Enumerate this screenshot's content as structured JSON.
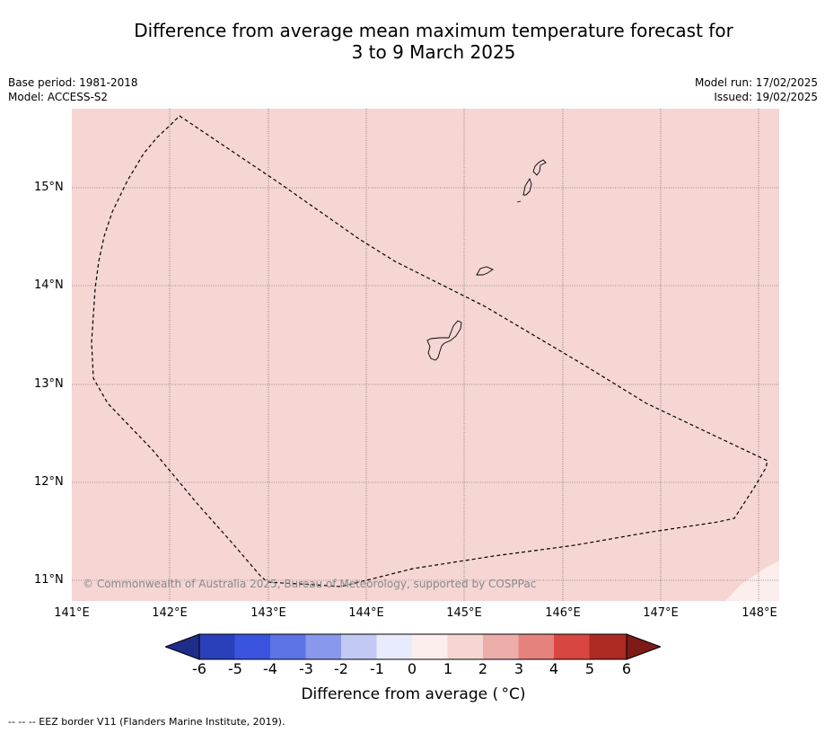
{
  "title": {
    "line1": "Difference from average mean maximum temperature forecast for",
    "line2": "3 to 9 March 2025"
  },
  "meta": {
    "base_period": "Base period: 1981-2018",
    "model": "Model: ACCESS-S2",
    "model_run": "Model run: 17/02/2025",
    "issued": "Issued: 19/02/2025"
  },
  "map": {
    "lat_labels": [
      "15°N",
      "14°N",
      "13°N",
      "12°N",
      "11°N"
    ],
    "lon_labels": [
      "141°E",
      "142°E",
      "143°E",
      "144°E",
      "145°E",
      "146°E",
      "147°E",
      "148°E"
    ],
    "copyright": "© Commonwealth of Australia 2025, Bureau of Meteorology, supported by COSPPac",
    "fill_color_main": "#f5d6d3",
    "fill_color_corner": "#fbeeec"
  },
  "colorbar": {
    "ticks": [
      "-6",
      "-5",
      "-4",
      "-3",
      "-2",
      "-1",
      "0",
      "1",
      "2",
      "3",
      "4",
      "5",
      "6"
    ],
    "colors": [
      "#1f2d8a",
      "#2a3fba",
      "#3a54e0",
      "#5c74e6",
      "#8898ec",
      "#c1c9f4",
      "#e7ebfb",
      "#fbeeec",
      "#f5d6d3",
      "#edadaa",
      "#e6827e",
      "#d84640",
      "#ad2a22",
      "#7d1a18"
    ],
    "label": "Difference from average ( °C)"
  },
  "footer": {
    "legend_text": "--  --  -- EEZ border V11 (Flanders Marine Institute, 2019)."
  }
}
